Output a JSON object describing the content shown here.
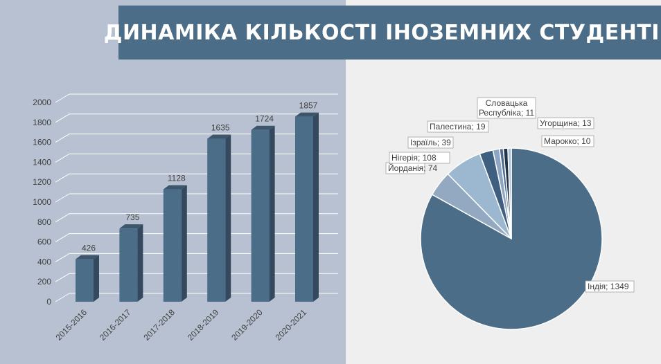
{
  "title": "ДИНАМІКА КІЛЬКОСТІ ІНОЗЕМНИХ СТУДЕНТІВ",
  "colors": {
    "bar": "#4c6d88",
    "bar_side": "#34495d",
    "bar_top": "#3d566c",
    "left_bg": "#b7c1d1",
    "right_bg": "#efefef",
    "banner": "#4c6d88"
  },
  "chart_data": [
    {
      "type": "bar",
      "categories": [
        "2015-2016",
        "2016-2017",
        "2017-2018",
        "2018-2019",
        "2019-2020",
        "2020-2021"
      ],
      "values": [
        426,
        735,
        1128,
        1635,
        1724,
        1857
      ],
      "ylim": [
        0,
        2000
      ],
      "yticks": [
        0,
        200,
        400,
        600,
        800,
        1000,
        1200,
        1400,
        1600,
        1800,
        2000
      ],
      "grid": true
    },
    {
      "type": "pie",
      "slices": [
        {
          "label": "Індія; 1349",
          "value": 1349,
          "color": "#4c6d88"
        },
        {
          "label": "Йорданія; 74",
          "value": 74,
          "color": "#93a9c1"
        },
        {
          "label": "Нігерія; 108",
          "value": 108,
          "color": "#9cb8d1"
        },
        {
          "label": "Ізраїль; 39",
          "value": 39,
          "color": "#3f5f80"
        },
        {
          "label": "Палестина; 19",
          "value": 19,
          "color": "#8ea6c2"
        },
        {
          "label": "Словацька Республіка; 11",
          "value": 11,
          "color": "#4d6c8f"
        },
        {
          "label": "Угорщина; 13",
          "value": 13,
          "color": "#223548"
        },
        {
          "label": "Марокко; 10",
          "value": 10,
          "color": "#a9c0d6"
        }
      ]
    }
  ]
}
